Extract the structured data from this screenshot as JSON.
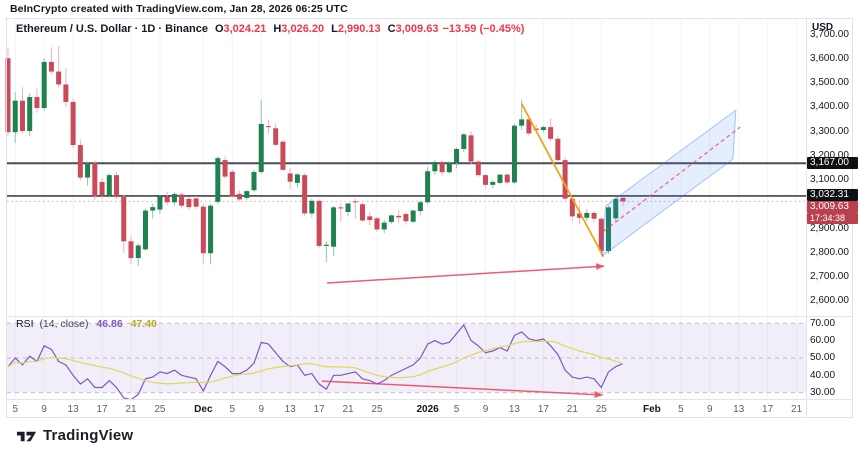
{
  "header": {
    "credit": "BeInCrypto created with TradingView.com, Jan 28, 2026 06:25 UTC"
  },
  "symbol_bar": {
    "title": "Ethereum / U.S. Dollar · 1D · Binance",
    "ohlc_items": [
      {
        "k": "O",
        "v": "3,024.21"
      },
      {
        "k": "H",
        "v": "3,026.20"
      },
      {
        "k": "L",
        "v": "2,990.13"
      },
      {
        "k": "C",
        "v": "3,009.63"
      }
    ],
    "change": "−13.59 (−0.45%)"
  },
  "price_axis": {
    "currency": "USD",
    "ticks": [
      {
        "t": "3,700.00",
        "v": 3700
      },
      {
        "t": "3,600.00",
        "v": 3600
      },
      {
        "t": "3,500.00",
        "v": 3500
      },
      {
        "t": "3,400.00",
        "v": 3400
      },
      {
        "t": "3,300.00",
        "v": 3300
      },
      {
        "t": "3,200.00",
        "v": 3200
      },
      {
        "t": "3,100.00",
        "v": 3100
      },
      {
        "t": "2,900.00",
        "v": 2900
      },
      {
        "t": "2,800.00",
        "v": 2800
      },
      {
        "t": "2,700.00",
        "v": 2700
      },
      {
        "t": "2,600.00",
        "v": 2600
      }
    ],
    "badges": {
      "level1": "3,167.00",
      "level2": "3,032.31",
      "last_price": "3,009.63",
      "countdown": "17:34:38"
    }
  },
  "rsi_pane": {
    "title": "RSI",
    "params": "(14, close)",
    "value": "46.86",
    "ma_value": "47.40",
    "ticks": [
      {
        "t": "70.00",
        "v": 70
      },
      {
        "t": "60.00",
        "v": 60
      },
      {
        "t": "50.00",
        "v": 50
      },
      {
        "t": "40.00",
        "v": 40
      },
      {
        "t": "30.00",
        "v": 30
      }
    ]
  },
  "footer": {
    "brand": "TradingView"
  },
  "chart_data": {
    "type": "candlestick",
    "title": "Ethereum / U.S. Dollar, 1D, Binance",
    "price_range": [
      2600,
      3700
    ],
    "rsi_range": [
      30,
      70
    ],
    "start_date": "2025-11-04",
    "interval": "1 day",
    "candles": [
      [
        3600,
        3645,
        3280,
        3295
      ],
      [
        3295,
        3460,
        3250,
        3425
      ],
      [
        3425,
        3480,
        3290,
        3300
      ],
      [
        3300,
        3455,
        3280,
        3440
      ],
      [
        3440,
        3475,
        3375,
        3395
      ],
      [
        3395,
        3600,
        3385,
        3585
      ],
      [
        3585,
        3645,
        3535,
        3545
      ],
      [
        3545,
        3650,
        3480,
        3492
      ],
      [
        3492,
        3560,
        3400,
        3420
      ],
      [
        3420,
        3435,
        3230,
        3242
      ],
      [
        3242,
        3265,
        3095,
        3108
      ],
      [
        3108,
        3175,
        3075,
        3168
      ],
      [
        3168,
        3180,
        3015,
        3032
      ],
      [
        3090,
        3108,
        3020,
        3034
      ],
      [
        3034,
        3125,
        3025,
        3118
      ],
      [
        3118,
        3130,
        3020,
        3028
      ],
      [
        3028,
        3035,
        2798,
        2845
      ],
      [
        2845,
        2868,
        2750,
        2776
      ],
      [
        2776,
        2836,
        2744,
        2828
      ],
      [
        2812,
        2980,
        2806,
        2972
      ],
      [
        2972,
        3000,
        2938,
        2986
      ],
      [
        2976,
        3036,
        2958,
        3030
      ],
      [
        3030,
        3048,
        2994,
        3006
      ],
      [
        3006,
        3048,
        2992,
        3040
      ],
      [
        3038,
        3046,
        2980,
        2992
      ],
      [
        3020,
        3030,
        2974,
        2986
      ],
      [
        3022,
        3032,
        2978,
        2988
      ],
      [
        2988,
        2998,
        2752,
        2796
      ],
      [
        2796,
        2999,
        2750,
        2992
      ],
      [
        3008,
        3196,
        3000,
        3188
      ],
      [
        3180,
        3196,
        3104,
        3112
      ],
      [
        3132,
        3140,
        3024,
        3030
      ],
      [
        3040,
        3054,
        3010,
        3018
      ],
      [
        3024,
        3056,
        3016,
        3052
      ],
      [
        3056,
        3140,
        3048,
        3131
      ],
      [
        3131,
        3428,
        3124,
        3329
      ],
      [
        3320,
        3346,
        3288,
        3318
      ],
      [
        3311,
        3331,
        3236,
        3243
      ],
      [
        3256,
        3262,
        3134,
        3140
      ],
      [
        3125,
        3148,
        3060,
        3091
      ],
      [
        3086,
        3126,
        3068,
        3121
      ],
      [
        3118,
        3126,
        2950,
        2960
      ],
      [
        2960,
        3020,
        2944,
        3012
      ],
      [
        3012,
        3018,
        2818,
        2826
      ],
      [
        2826,
        2846,
        2760,
        2831
      ],
      [
        2823,
        2992,
        2786,
        2985
      ],
      [
        2985,
        3000,
        2926,
        2982
      ],
      [
        2966,
        3004,
        2948,
        3001
      ],
      [
        3010,
        3022,
        2938,
        3006
      ],
      [
        2998,
        3004,
        2926,
        2931
      ],
      [
        2948,
        2966,
        2912,
        2933
      ],
      [
        2940,
        2948,
        2884,
        2894
      ],
      [
        2894,
        2932,
        2878,
        2922
      ],
      [
        2925,
        2955,
        2918,
        2952
      ],
      [
        2950,
        2972,
        2920,
        2944
      ],
      [
        2958,
        2964,
        2914,
        2928
      ],
      [
        2926,
        2974,
        2920,
        2972
      ],
      [
        2970,
        3012,
        2952,
        3006
      ],
      [
        3006,
        3152,
        3000,
        3134
      ],
      [
        3134,
        3180,
        3118,
        3172
      ],
      [
        3172,
        3178,
        3116,
        3130
      ],
      [
        3130,
        3176,
        3124,
        3168
      ],
      [
        3168,
        3232,
        3146,
        3226
      ],
      [
        3226,
        3292,
        3214,
        3286
      ],
      [
        3282,
        3300,
        3164,
        3174
      ],
      [
        3174,
        3182,
        3108,
        3118
      ],
      [
        3118,
        3122,
        3066,
        3078
      ],
      [
        3078,
        3098,
        3064,
        3090
      ],
      [
        3086,
        3122,
        3080,
        3120
      ],
      [
        3120,
        3126,
        3080,
        3088
      ],
      [
        3088,
        3330,
        3082,
        3322
      ],
      [
        3322,
        3430,
        3304,
        3348
      ],
      [
        3348,
        3362,
        3280,
        3290
      ],
      [
        3310,
        3328,
        3294,
        3304
      ],
      [
        3304,
        3322,
        3294,
        3316
      ],
      [
        3316,
        3352,
        3258,
        3268
      ],
      [
        3268,
        3278,
        3170,
        3180
      ],
      [
        3180,
        3192,
        3014,
        3021
      ],
      [
        3021,
        3028,
        2930,
        2948
      ],
      [
        2960,
        2995,
        2915,
        2942
      ],
      [
        2942,
        2976,
        2928,
        2962
      ],
      [
        2962,
        2970,
        2922,
        2938
      ],
      [
        2938,
        2946,
        2788,
        2805
      ],
      [
        2805,
        2992,
        2794,
        2985
      ],
      [
        2940,
        3026,
        2924,
        3020
      ],
      [
        3024.21,
        3026.2,
        2990.13,
        3009.63
      ]
    ],
    "rsi": [
      45,
      50,
      46,
      51,
      48,
      57,
      55,
      48,
      46,
      40,
      35,
      38,
      33,
      33,
      37,
      33,
      27,
      26,
      29,
      38,
      39,
      42,
      41,
      43,
      40,
      39,
      38,
      31,
      40,
      48,
      45,
      41,
      41,
      43,
      47,
      59,
      58,
      53,
      48,
      45,
      46,
      40,
      41,
      35,
      32,
      40,
      40,
      41,
      42,
      38,
      37,
      35,
      37,
      40,
      42,
      44,
      46,
      50,
      58,
      60,
      58,
      59,
      64,
      69,
      60,
      57,
      53,
      54,
      56,
      54,
      63,
      65,
      61,
      60,
      61,
      57,
      52,
      43,
      39,
      38,
      39,
      38,
      33,
      42,
      45,
      46.86
    ],
    "rsi_ma_period": 14,
    "levels": [
      {
        "price": 3167.0,
        "label": "3,167.00"
      },
      {
        "price": 3032.31,
        "label": "3,032.31"
      }
    ],
    "last_price": 3009.63,
    "trendline": {
      "d1": 71,
      "p1": 3412,
      "d2": 82.3,
      "p2": 2782
    },
    "channel": {
      "points": [
        [
          82.1,
          2784
        ],
        [
          82.6,
          2991
        ],
        [
          100.6,
          3386
        ],
        [
          100.2,
          3184
        ]
      ],
      "midline": {
        "d1": 82.4,
        "p1": 2888,
        "d2": 101.2,
        "p2": 3316
      }
    },
    "arrows": [
      {
        "pane": "main",
        "d1": 44.1,
        "p1": 2673,
        "d2": 82.4,
        "p2": 2743
      },
      {
        "pane": "rsi",
        "d1": 43.4,
        "v1": 36.7,
        "d2": 82.2,
        "v2": 28.7
      }
    ],
    "time_ticks": [
      {
        "label": "5",
        "d": 1
      },
      {
        "label": "9",
        "d": 5
      },
      {
        "label": "13",
        "d": 9
      },
      {
        "label": "17",
        "d": 13
      },
      {
        "label": "21",
        "d": 17
      },
      {
        "label": "25",
        "d": 21
      },
      {
        "label": "Dec",
        "d": 27,
        "strong": true
      },
      {
        "label": "5",
        "d": 31
      },
      {
        "label": "9",
        "d": 35
      },
      {
        "label": "13",
        "d": 39
      },
      {
        "label": "17",
        "d": 43
      },
      {
        "label": "21",
        "d": 47
      },
      {
        "label": "25",
        "d": 51
      },
      {
        "label": "2026",
        "d": 58,
        "strong": true
      },
      {
        "label": "5",
        "d": 62
      },
      {
        "label": "9",
        "d": 66
      },
      {
        "label": "13",
        "d": 70
      },
      {
        "label": "17",
        "d": 74
      },
      {
        "label": "21",
        "d": 78
      },
      {
        "label": "25",
        "d": 82
      },
      {
        "label": "Feb",
        "d": 89,
        "strong": true
      },
      {
        "label": "5",
        "d": 93
      },
      {
        "label": "9",
        "d": 97
      },
      {
        "label": "13",
        "d": 101
      },
      {
        "label": "17",
        "d": 105
      },
      {
        "label": "21",
        "d": 109
      }
    ],
    "colors": {
      "up": "#1f8150",
      "down": "#ca4a59",
      "up_wick": "#8fc3ab",
      "down_wick": "#efb1bb",
      "level_dark": "#4a4d57",
      "level_black": "#1f2228",
      "last_dotted": "#f39daa",
      "trend_orange": "#f5a11c",
      "channel_fill": "rgba(49,121,245,0.13)",
      "channel_edge": "rgba(49,121,245,0.40)",
      "channel_mid": "#ef5350",
      "arrow_red": "#f04a5f",
      "rsi_line": "#7e57c2",
      "rsi_ma": "#e0d75c",
      "rsi_band": "rgba(126,87,194,0.10)",
      "grid": "rgba(42,46,57,0.05)",
      "frame": "#e0e3eb",
      "accent_red": "#f23645"
    }
  }
}
